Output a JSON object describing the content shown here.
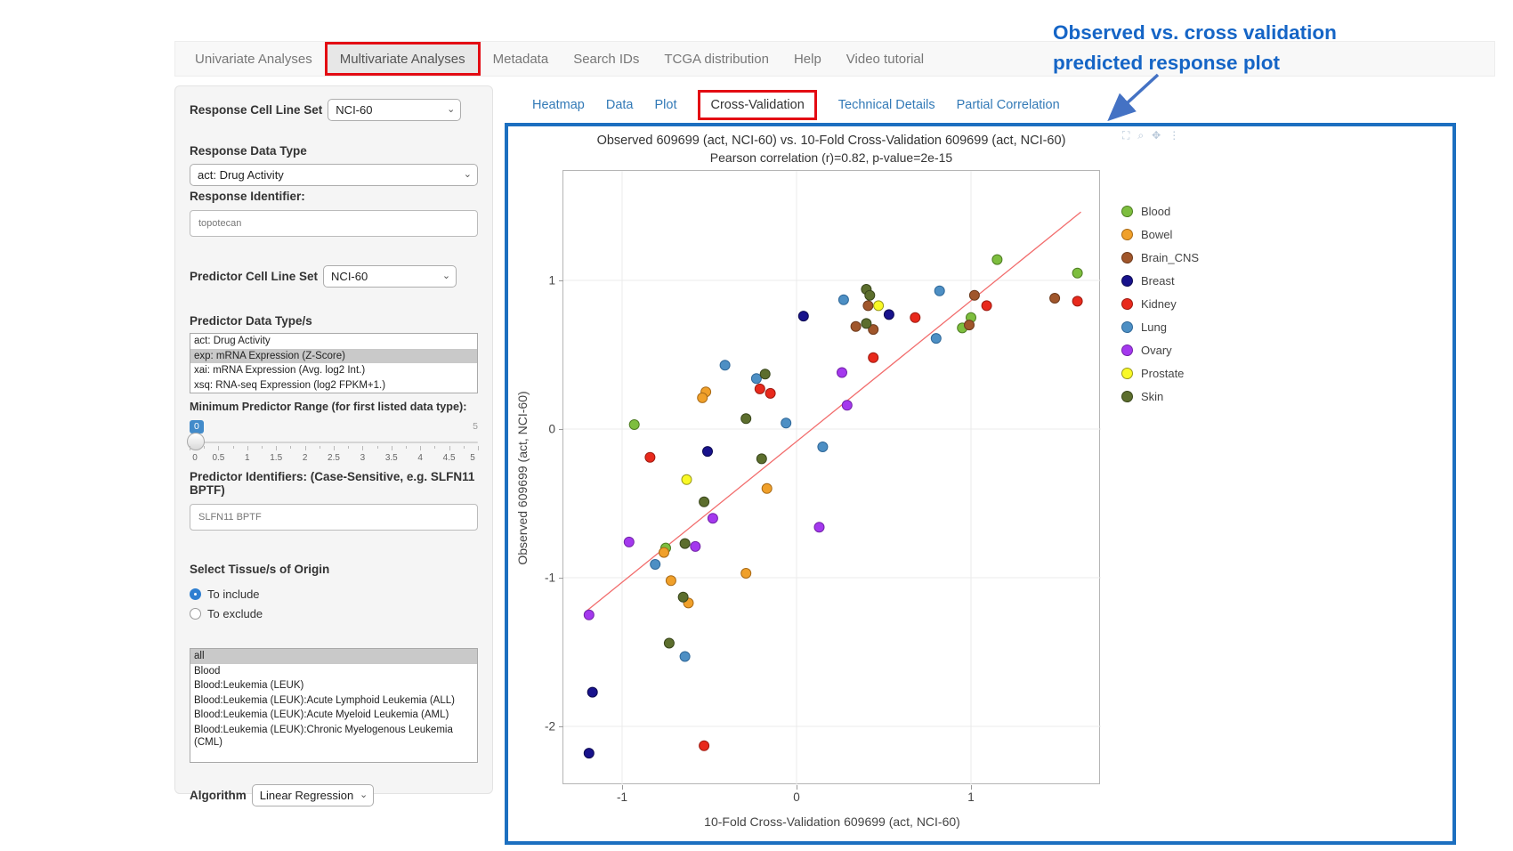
{
  "navbar": {
    "tabs": [
      {
        "label": "Univariate Analyses",
        "active": false,
        "red_box": false
      },
      {
        "label": "Multivariate Analyses",
        "active": true,
        "red_box": true
      },
      {
        "label": "Metadata",
        "active": false,
        "red_box": false
      },
      {
        "label": "Search IDs",
        "active": false,
        "red_box": false
      },
      {
        "label": "TCGA distribution",
        "active": false,
        "red_box": false
      },
      {
        "label": "Help",
        "active": false,
        "red_box": false
      },
      {
        "label": "Video tutorial",
        "active": false,
        "red_box": false
      }
    ]
  },
  "sidebar": {
    "response_cell_line_set": {
      "label": "Response Cell Line Set",
      "value": "NCI-60"
    },
    "response_data_type": {
      "label": "Response Data Type",
      "value": "act: Drug Activity"
    },
    "response_identifier": {
      "label": "Response Identifier:",
      "value": "topotecan"
    },
    "predictor_cell_line_set": {
      "label": "Predictor Cell Line Set",
      "value": "NCI-60"
    },
    "predictor_data_types": {
      "label": "Predictor Data Type/s",
      "options": [
        {
          "label": "act: Drug Activity",
          "selected": false
        },
        {
          "label": "exp: mRNA Expression (Z-Score)",
          "selected": true
        },
        {
          "label": "xai: mRNA Expression (Avg. log2 Int.)",
          "selected": false
        },
        {
          "label": "xsq: RNA-seq Expression (log2 FPKM+1.)",
          "selected": false
        }
      ]
    },
    "min_predictor_range": {
      "label": "Minimum Predictor Range (for first listed data type):",
      "value": "0",
      "min": "0",
      "max": "5",
      "tick_labels": [
        "0",
        "0.5",
        "1",
        "1.5",
        "2",
        "2.5",
        "3",
        "3.5",
        "4",
        "4.5",
        "5"
      ]
    },
    "predictor_identifiers": {
      "label": "Predictor Identifiers: (Case-Sensitive, e.g. SLFN11 BPTF)",
      "value": "SLFN11 BPTF"
    },
    "tissue_origin": {
      "label": "Select Tissue/s of Origin",
      "radios": [
        {
          "label": "To include",
          "selected": true
        },
        {
          "label": "To exclude",
          "selected": false
        }
      ],
      "options": [
        {
          "label": "all",
          "selected": true
        },
        {
          "label": "Blood",
          "selected": false
        },
        {
          "label": "Blood:Leukemia (LEUK)",
          "selected": false
        },
        {
          "label": "Blood:Leukemia (LEUK):Acute Lymphoid Leukemia (ALL)",
          "selected": false
        },
        {
          "label": "Blood:Leukemia (LEUK):Acute Myeloid Leukemia (AML)",
          "selected": false
        },
        {
          "label": "Blood:Leukemia (LEUK):Chronic Myelogenous Leukemia (CML)",
          "selected": false
        }
      ]
    },
    "algorithm": {
      "label": "Algorithm",
      "value": "Linear Regression"
    }
  },
  "subtabs": [
    {
      "label": "Heatmap",
      "active": false,
      "red_box": false
    },
    {
      "label": "Data",
      "active": false,
      "red_box": false
    },
    {
      "label": "Plot",
      "active": false,
      "red_box": false
    },
    {
      "label": "Cross-Validation",
      "active": true,
      "red_box": true
    },
    {
      "label": "Technical Details",
      "active": false,
      "red_box": false
    },
    {
      "label": "Partial Correlation",
      "active": false,
      "red_box": false
    }
  ],
  "annotation": {
    "line1": "Observed vs. cross validation",
    "line2": "predicted response plot",
    "color": "#1565c6"
  },
  "modebar_icons": [
    "camera-icon",
    "zoom-icon",
    "pan-icon",
    "more-icon"
  ],
  "chart_data": {
    "type": "scatter",
    "title": "Observed 609699 (act, NCI-60) vs. 10-Fold Cross-Validation 609699 (act, NCI-60)",
    "subtitle": "Pearson correlation (r)=0.82, p-value=2e-15",
    "pearson_r": 0.82,
    "p_value": "2e-15",
    "xlabel": "10-Fold Cross-Validation 609699 (act, NCI-60)",
    "ylabel": "Observed 609699 (act, NCI-60)",
    "xlim": [
      -1.34,
      1.74
    ],
    "ylim": [
      -2.4,
      1.74
    ],
    "xticks": [
      -1,
      0,
      1
    ],
    "yticks": [
      1,
      0,
      -1,
      -2
    ],
    "grid": true,
    "legend_position": "right",
    "trendline": {
      "x1": -1.2,
      "y1": -1.22,
      "x2": 1.63,
      "y2": 1.46,
      "color": "#f26d6d"
    },
    "series": [
      {
        "name": "Blood",
        "color": "#7dbe3e",
        "stroke": "#4e7d22",
        "points": [
          [
            1.15,
            1.14
          ],
          [
            1.61,
            1.05
          ],
          [
            1.0,
            0.75
          ],
          [
            0.95,
            0.68
          ],
          [
            -0.93,
            0.03
          ],
          [
            -0.75,
            -0.8
          ]
        ]
      },
      {
        "name": "Bowel",
        "color": "#f0a02a",
        "stroke": "#a96a16",
        "points": [
          [
            -0.52,
            0.25
          ],
          [
            -0.54,
            0.21
          ],
          [
            -0.17,
            -0.4
          ],
          [
            -0.76,
            -0.83
          ],
          [
            -0.29,
            -0.97
          ],
          [
            -0.72,
            -1.02
          ],
          [
            -0.62,
            -1.17
          ]
        ]
      },
      {
        "name": "Brain_CNS",
        "color": "#a0562b",
        "stroke": "#6e3a1c",
        "points": [
          [
            1.02,
            0.9
          ],
          [
            1.48,
            0.88
          ],
          [
            0.41,
            0.83
          ],
          [
            0.99,
            0.7
          ],
          [
            0.34,
            0.69
          ],
          [
            0.44,
            0.67
          ]
        ]
      },
      {
        "name": "Breast",
        "color": "#18128c",
        "stroke": "#0d0a52",
        "points": [
          [
            0.53,
            0.77
          ],
          [
            0.04,
            0.76
          ],
          [
            -0.51,
            -0.15
          ],
          [
            -1.17,
            -1.77
          ],
          [
            -1.19,
            -2.18
          ]
        ]
      },
      {
        "name": "Kidney",
        "color": "#e8291c",
        "stroke": "#9e1a10",
        "points": [
          [
            1.61,
            0.86
          ],
          [
            1.09,
            0.83
          ],
          [
            0.68,
            0.75
          ],
          [
            0.44,
            0.48
          ],
          [
            -0.21,
            0.27
          ],
          [
            -0.15,
            0.24
          ],
          [
            -0.84,
            -0.19
          ],
          [
            -0.53,
            -2.13
          ]
        ]
      },
      {
        "name": "Lung",
        "color": "#4d8fc4",
        "stroke": "#2f6899",
        "points": [
          [
            0.82,
            0.93
          ],
          [
            0.27,
            0.87
          ],
          [
            0.8,
            0.61
          ],
          [
            -0.41,
            0.43
          ],
          [
            -0.23,
            0.34
          ],
          [
            -0.06,
            0.04
          ],
          [
            0.15,
            -0.12
          ],
          [
            -0.81,
            -0.91
          ],
          [
            -0.64,
            -1.53
          ]
        ]
      },
      {
        "name": "Ovary",
        "color": "#a438ee",
        "stroke": "#7224a8",
        "points": [
          [
            0.26,
            0.38
          ],
          [
            0.29,
            0.16
          ],
          [
            -0.48,
            -0.6
          ],
          [
            0.13,
            -0.66
          ],
          [
            -0.96,
            -0.76
          ],
          [
            -0.58,
            -0.79
          ],
          [
            -1.19,
            -1.25
          ]
        ]
      },
      {
        "name": "Prostate",
        "color": "#f9f926",
        "stroke": "#99991a",
        "points": [
          [
            0.47,
            0.83
          ],
          [
            -0.63,
            -0.34
          ]
        ]
      },
      {
        "name": "Skin",
        "color": "#5c6e2d",
        "stroke": "#39461b",
        "points": [
          [
            0.4,
            0.94
          ],
          [
            0.42,
            0.9
          ],
          [
            0.4,
            0.71
          ],
          [
            -0.18,
            0.37
          ],
          [
            -0.29,
            0.07
          ],
          [
            -0.2,
            -0.2
          ],
          [
            -0.53,
            -0.49
          ],
          [
            -0.64,
            -0.77
          ],
          [
            -0.65,
            -1.13
          ],
          [
            -0.73,
            -1.44
          ]
        ]
      }
    ]
  }
}
